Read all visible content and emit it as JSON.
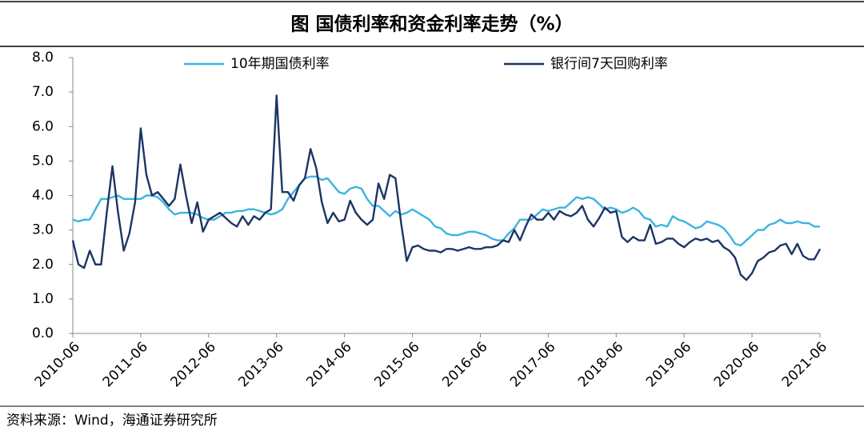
{
  "chart_data": {
    "type": "line",
    "title": "图  国债利率和资金利率走势（%）",
    "source": "资料来源：Wind，海通证券研究所",
    "x": [
      "2010-06",
      "2010-07",
      "2010-08",
      "2010-09",
      "2010-10",
      "2010-11",
      "2010-12",
      "2011-01",
      "2011-02",
      "2011-03",
      "2011-04",
      "2011-05",
      "2011-06",
      "2011-07",
      "2011-08",
      "2011-09",
      "2011-10",
      "2011-11",
      "2011-12",
      "2012-01",
      "2012-02",
      "2012-03",
      "2012-04",
      "2012-05",
      "2012-06",
      "2012-07",
      "2012-08",
      "2012-09",
      "2012-10",
      "2012-11",
      "2012-12",
      "2013-01",
      "2013-02",
      "2013-03",
      "2013-04",
      "2013-05",
      "2013-06",
      "2013-07",
      "2013-08",
      "2013-09",
      "2013-10",
      "2013-11",
      "2013-12",
      "2014-01",
      "2014-02",
      "2014-03",
      "2014-04",
      "2014-05",
      "2014-06",
      "2014-07",
      "2014-08",
      "2014-09",
      "2014-10",
      "2014-11",
      "2014-12",
      "2015-01",
      "2015-02",
      "2015-03",
      "2015-04",
      "2015-05",
      "2015-06",
      "2015-07",
      "2015-08",
      "2015-09",
      "2015-10",
      "2015-11",
      "2015-12",
      "2016-01",
      "2016-02",
      "2016-03",
      "2016-04",
      "2016-05",
      "2016-06",
      "2016-07",
      "2016-08",
      "2016-09",
      "2016-10",
      "2016-11",
      "2016-12",
      "2017-01",
      "2017-02",
      "2017-03",
      "2017-04",
      "2017-05",
      "2017-06",
      "2017-07",
      "2017-08",
      "2017-09",
      "2017-10",
      "2017-11",
      "2017-12",
      "2018-01",
      "2018-02",
      "2018-03",
      "2018-04",
      "2018-05",
      "2018-06",
      "2018-07",
      "2018-08",
      "2018-09",
      "2018-10",
      "2018-11",
      "2018-12",
      "2019-01",
      "2019-02",
      "2019-03",
      "2019-04",
      "2019-05",
      "2019-06",
      "2019-07",
      "2019-08",
      "2019-09",
      "2019-10",
      "2019-11",
      "2019-12",
      "2020-01",
      "2020-02",
      "2020-03",
      "2020-04",
      "2020-05",
      "2020-06",
      "2020-07",
      "2020-08",
      "2020-09",
      "2020-10",
      "2020-11",
      "2020-12",
      "2021-01",
      "2021-02",
      "2021-03",
      "2021-04",
      "2021-05",
      "2021-06"
    ],
    "series": [
      {
        "name": "10年期国债利率",
        "color": "#3cb4e2",
        "values": [
          3.3,
          3.25,
          3.3,
          3.3,
          3.6,
          3.9,
          3.9,
          3.95,
          4.0,
          3.9,
          3.9,
          3.9,
          3.9,
          4.0,
          4.0,
          3.95,
          3.8,
          3.6,
          3.45,
          3.5,
          3.5,
          3.5,
          3.45,
          3.35,
          3.3,
          3.3,
          3.4,
          3.5,
          3.5,
          3.55,
          3.55,
          3.6,
          3.6,
          3.55,
          3.5,
          3.45,
          3.5,
          3.6,
          3.9,
          4.1,
          4.3,
          4.5,
          4.55,
          4.55,
          4.45,
          4.5,
          4.3,
          4.1,
          4.05,
          4.2,
          4.25,
          4.2,
          3.9,
          3.7,
          3.7,
          3.55,
          3.4,
          3.55,
          3.45,
          3.5,
          3.6,
          3.5,
          3.4,
          3.3,
          3.1,
          3.05,
          2.9,
          2.85,
          2.85,
          2.9,
          2.95,
          2.95,
          2.9,
          2.85,
          2.75,
          2.7,
          2.7,
          2.9,
          3.05,
          3.3,
          3.3,
          3.3,
          3.45,
          3.6,
          3.55,
          3.6,
          3.65,
          3.65,
          3.8,
          3.95,
          3.9,
          3.95,
          3.9,
          3.75,
          3.6,
          3.65,
          3.6,
          3.5,
          3.55,
          3.65,
          3.55,
          3.35,
          3.3,
          3.1,
          3.15,
          3.1,
          3.4,
          3.3,
          3.25,
          3.15,
          3.05,
          3.1,
          3.25,
          3.2,
          3.15,
          3.05,
          2.85,
          2.6,
          2.55,
          2.7,
          2.85,
          3.0,
          3.0,
          3.15,
          3.2,
          3.3,
          3.2,
          3.2,
          3.25,
          3.2,
          3.2,
          3.1,
          3.1
        ]
      },
      {
        "name": "银行间7天回购利率",
        "color": "#1c3565",
        "values": [
          2.7,
          2.0,
          1.9,
          2.4,
          2.0,
          2.0,
          3.5,
          4.85,
          3.5,
          2.4,
          2.9,
          3.8,
          5.95,
          4.6,
          4.0,
          4.1,
          3.9,
          3.7,
          3.9,
          4.9,
          4.0,
          3.2,
          3.8,
          2.95,
          3.3,
          3.4,
          3.5,
          3.35,
          3.2,
          3.1,
          3.4,
          3.15,
          3.4,
          3.3,
          3.5,
          3.6,
          6.9,
          4.1,
          4.1,
          3.85,
          4.3,
          4.5,
          5.35,
          4.8,
          3.8,
          3.2,
          3.5,
          3.25,
          3.3,
          3.85,
          3.5,
          3.3,
          3.15,
          3.3,
          4.35,
          3.9,
          4.6,
          4.5,
          3.2,
          2.1,
          2.5,
          2.55,
          2.45,
          2.4,
          2.4,
          2.35,
          2.45,
          2.45,
          2.4,
          2.45,
          2.5,
          2.45,
          2.45,
          2.5,
          2.5,
          2.55,
          2.7,
          2.65,
          3.0,
          2.7,
          3.1,
          3.45,
          3.3,
          3.3,
          3.5,
          3.3,
          3.55,
          3.45,
          3.4,
          3.5,
          3.7,
          3.3,
          3.1,
          3.35,
          3.65,
          3.5,
          3.55,
          2.8,
          2.65,
          2.8,
          2.7,
          2.7,
          3.15,
          2.6,
          2.65,
          2.75,
          2.75,
          2.6,
          2.5,
          2.65,
          2.75,
          2.7,
          2.75,
          2.65,
          2.7,
          2.5,
          2.4,
          2.2,
          1.7,
          1.55,
          1.75,
          2.1,
          2.2,
          2.35,
          2.4,
          2.55,
          2.6,
          2.3,
          2.6,
          2.25,
          2.15,
          2.15,
          2.45
        ]
      }
    ],
    "xlim": [
      "2010-06",
      "2021-06"
    ],
    "xticks": [
      "2010-06",
      "2011-06",
      "2012-06",
      "2013-06",
      "2014-06",
      "2015-06",
      "2016-06",
      "2017-06",
      "2018-06",
      "2019-06",
      "2020-06",
      "2021-06"
    ],
    "ylim": [
      0,
      8
    ],
    "yticks": [
      {
        "value": 0,
        "label": "0.0"
      },
      {
        "value": 1,
        "label": "1.0"
      },
      {
        "value": 2,
        "label": "2.0"
      },
      {
        "value": 3,
        "label": "3.0"
      },
      {
        "value": 4,
        "label": "4.0"
      },
      {
        "value": 5,
        "label": "5.0"
      },
      {
        "value": 6,
        "label": "6.0"
      },
      {
        "value": 7,
        "label": "7.0"
      },
      {
        "value": 8,
        "label": "8.0"
      }
    ],
    "grid": false
  }
}
